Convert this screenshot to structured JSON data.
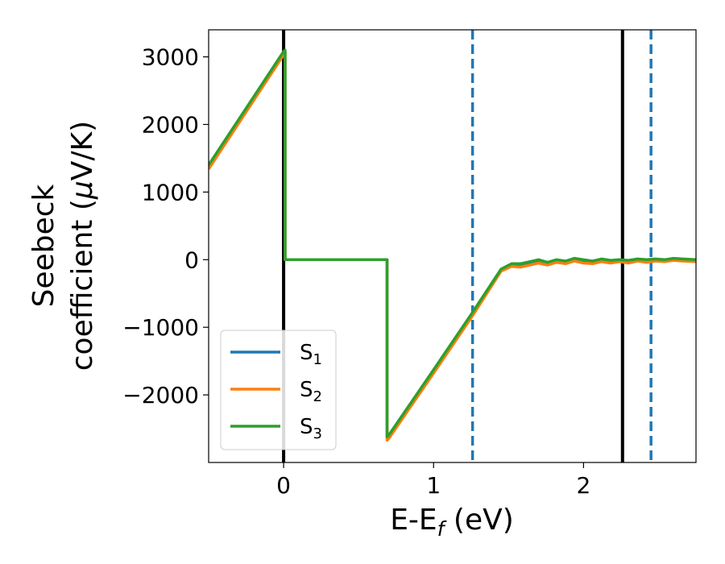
{
  "chart_data": {
    "type": "line",
    "xlabel_main": "E-E",
    "xlabel_sub": "f",
    "xlabel_unit": " (eV)",
    "ylabel_line1": "Seebeck",
    "ylabel_line2_pre": "coefficient  (",
    "ylabel_mu": "μ",
    "ylabel_line2_post": "V/K)",
    "xlim": [
      -0.5,
      2.75
    ],
    "ylim": [
      -3000,
      3400
    ],
    "x_ticks": [
      0,
      1,
      2
    ],
    "x_tick_labels": [
      "0",
      "1",
      "2"
    ],
    "y_ticks": [
      -2000,
      -1000,
      0,
      1000,
      2000,
      3000
    ],
    "y_tick_labels": [
      "−2000",
      "−1000",
      "0",
      "1000",
      "2000",
      "3000"
    ],
    "grid": false,
    "legend_position": "lower-left",
    "vertical_lines": [
      {
        "x": 0.0,
        "style": "solid",
        "color": "#000000"
      },
      {
        "x": 2.26,
        "style": "solid",
        "color": "#000000"
      },
      {
        "x": 1.26,
        "style": "dashed",
        "color": "#1f77b4"
      },
      {
        "x": 2.45,
        "style": "dashed",
        "color": "#1f77b4"
      }
    ],
    "series": [
      {
        "name": "S",
        "sub": "1",
        "color": "#1f77b4",
        "x": [
          -0.5,
          0.0,
          0.01,
          0.01,
          0.69,
          0.69,
          0.7,
          1.0,
          1.26,
          1.45,
          1.52,
          1.58,
          1.64,
          1.7,
          1.76,
          1.82,
          1.88,
          1.94,
          2.0,
          2.06,
          2.12,
          2.18,
          2.24,
          2.3,
          2.36,
          2.42,
          2.48,
          2.54,
          2.6,
          2.66,
          2.75
        ],
        "y": [
          1370,
          3060,
          3080,
          0,
          0,
          -2640,
          -2620,
          -1650,
          -800,
          -150,
          -80,
          -90,
          -50,
          -30,
          -60,
          -20,
          -40,
          0,
          -30,
          -50,
          -10,
          -40,
          -20,
          -40,
          -10,
          -30,
          -10,
          -20,
          0,
          -10,
          -20
        ]
      },
      {
        "name": "S",
        "sub": "2",
        "color": "#ff7f0e",
        "x": [
          -0.5,
          0.0,
          0.01,
          0.01,
          0.69,
          0.69,
          0.7,
          1.0,
          1.26,
          1.45,
          1.52,
          1.58,
          1.64,
          1.7,
          1.76,
          1.82,
          1.88,
          1.94,
          2.0,
          2.06,
          2.12,
          2.18,
          2.24,
          2.3,
          2.36,
          2.42,
          2.48,
          2.54,
          2.6,
          2.66,
          2.75
        ],
        "y": [
          1340,
          3030,
          3060,
          0,
          0,
          -2670,
          -2650,
          -1680,
          -830,
          -170,
          -100,
          -110,
          -80,
          -50,
          -80,
          -40,
          -60,
          -20,
          -50,
          -60,
          -30,
          -50,
          -30,
          -50,
          -20,
          -40,
          -20,
          -30,
          -10,
          -20,
          -30
        ]
      },
      {
        "name": "S",
        "sub": "3",
        "color": "#2ca02c",
        "x": [
          -0.5,
          0.0,
          0.01,
          0.01,
          0.69,
          0.69,
          0.7,
          1.0,
          1.26,
          1.45,
          1.52,
          1.58,
          1.64,
          1.7,
          1.76,
          1.82,
          1.88,
          1.94,
          2.0,
          2.06,
          2.12,
          2.18,
          2.24,
          2.3,
          2.36,
          2.42,
          2.48,
          2.54,
          2.6,
          2.66,
          2.75
        ],
        "y": [
          1400,
          3080,
          3100,
          0,
          0,
          -2620,
          -2600,
          -1630,
          -780,
          -140,
          -60,
          -60,
          -30,
          0,
          -40,
          0,
          -20,
          20,
          0,
          -20,
          10,
          -10,
          0,
          -10,
          10,
          0,
          10,
          0,
          20,
          10,
          0
        ]
      }
    ]
  }
}
